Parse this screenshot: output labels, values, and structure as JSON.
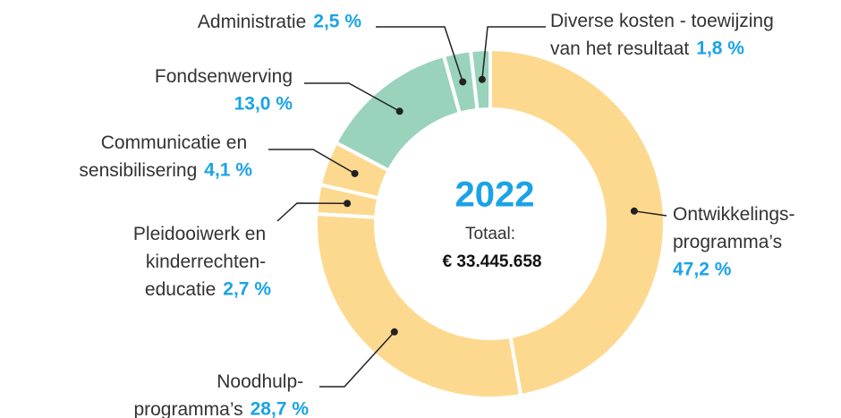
{
  "chart_data": {
    "type": "pie",
    "donut": true,
    "center_title": "2022",
    "center_label": "Totaal:",
    "total": "€ 33.445.658",
    "categories": [
      "Ontwikkelings-\nprogramma’s",
      "Noodhulp-\nprogramma’s",
      "Pleidooiwerk en\nkinderrechten-\neducatie",
      "Communicatie en\nsensibilisering",
      "Fondsenwerving",
      "Administratie",
      "Diverse kosten - toewijzing\nvan het resultaat"
    ],
    "values": [
      47.2,
      28.7,
      2.7,
      4.1,
      13.0,
      2.5,
      1.8
    ],
    "value_labels": [
      "47,2 %",
      "28,7 %",
      "2,7 %",
      "4,1 %",
      "13,0 %",
      "2,5 %",
      "1,8 %"
    ],
    "colors": [
      "#fdd98f",
      "#fdd98f",
      "#fdd98f",
      "#fdd98f",
      "#9ad3bc",
      "#9ad3bc",
      "#9ad3bc"
    ]
  }
}
